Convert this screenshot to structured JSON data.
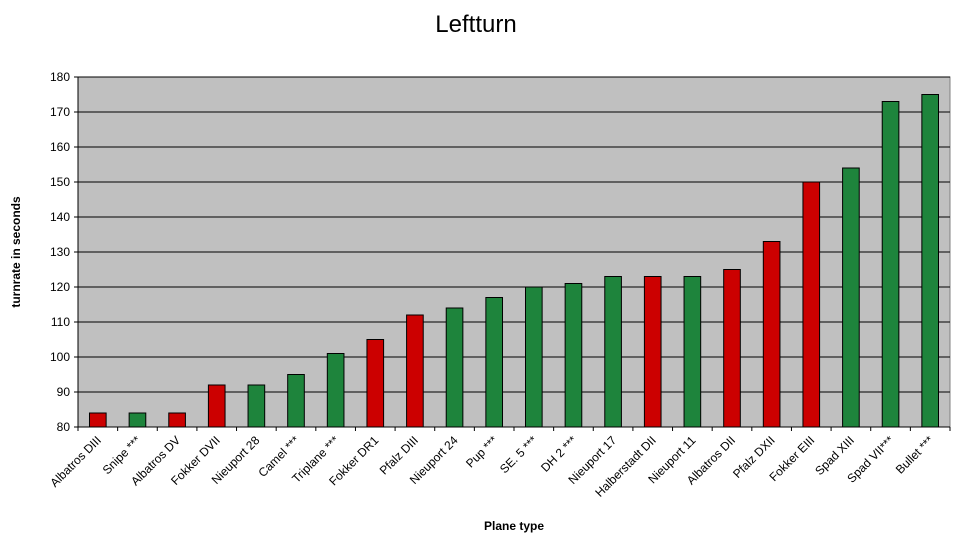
{
  "chart_data": {
    "type": "bar",
    "title": "Leftturn",
    "xlabel": "Plane type",
    "ylabel": "turnrate in seconds",
    "ylim": [
      80,
      180
    ],
    "yticks": [
      80,
      90,
      100,
      110,
      120,
      130,
      140,
      150,
      160,
      170,
      180
    ],
    "grid": true,
    "legend": "none",
    "colors": {
      "red": "#cc0000",
      "green": "#1e843c",
      "plot_bg": "#c0c0c0"
    },
    "categories": [
      "Albatros DIII",
      "Snipe ***",
      "Albatros DV",
      "Fokker DVII",
      "Nieuport 28",
      "Camel ***",
      "Triplane ***",
      "Fokker DR1",
      "Pfalz DIII",
      "Nieuport 24",
      "Pup ***",
      "SE. 5 ***",
      "DH 2 ***",
      "Nieuport 17",
      "Halberstadt DII",
      "Nieuport 11",
      "Albatros DII",
      "Pfalz DXII",
      "Fokker EIII",
      "Spad XIII",
      "Spad VII***",
      "Bullet ***"
    ],
    "values": [
      84,
      84,
      84,
      92,
      92,
      95,
      101,
      105,
      112,
      114,
      117,
      120,
      121,
      123,
      123,
      123,
      125,
      133,
      150,
      154,
      173,
      175
    ],
    "bar_colors": [
      "red",
      "green",
      "red",
      "red",
      "green",
      "green",
      "green",
      "red",
      "red",
      "green",
      "green",
      "green",
      "green",
      "green",
      "red",
      "green",
      "red",
      "red",
      "red",
      "green",
      "green",
      "green"
    ]
  }
}
